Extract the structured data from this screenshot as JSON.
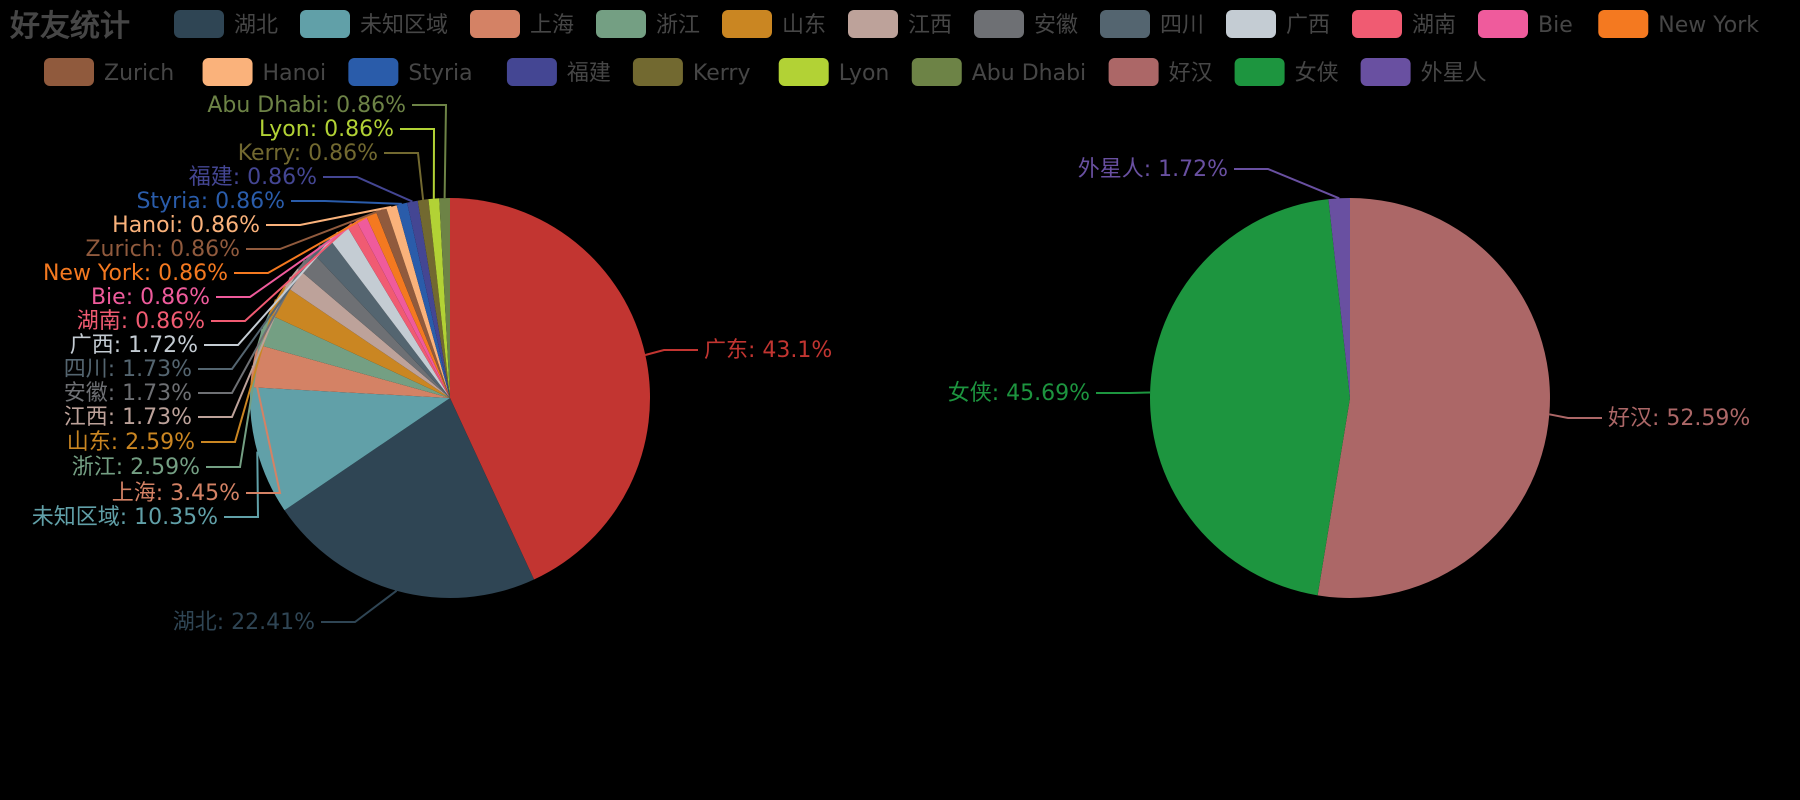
{
  "chart_data": [
    {
      "type": "pie",
      "title": "好友统计",
      "title_color": "#464646",
      "slices": [
        {
          "name": "广东",
          "label": "广东: 43.1%",
          "value": 43.1,
          "color": "#c23531"
        },
        {
          "name": "湖北",
          "label": "湖北: 22.41%",
          "value": 22.41,
          "color": "#2f4554"
        },
        {
          "name": "未知区域",
          "label": "未知区域: 10.35%",
          "value": 10.35,
          "color": "#61a0a8"
        },
        {
          "name": "上海",
          "label": "上海: 3.45%",
          "value": 3.45,
          "color": "#d48265"
        },
        {
          "name": "浙江",
          "label": "浙江: 2.59%",
          "value": 2.59,
          "color": "#749f83"
        },
        {
          "name": "山东",
          "label": "山东: 2.59%",
          "value": 2.59,
          "color": "#ca8622"
        },
        {
          "name": "江西",
          "label": "江西: 1.73%",
          "value": 1.73,
          "color": "#bda29a"
        },
        {
          "name": "安徽",
          "label": "安徽: 1.73%",
          "value": 1.73,
          "color": "#6e7074"
        },
        {
          "name": "四川",
          "label": "四川: 1.73%",
          "value": 1.73,
          "color": "#546570"
        },
        {
          "name": "广西",
          "label": "广西: 1.72%",
          "value": 1.72,
          "color": "#c4ccd3"
        },
        {
          "name": "湖南",
          "label": "湖南: 0.86%",
          "value": 0.86,
          "color": "#f05b72"
        },
        {
          "name": "Bie",
          "label": "Bie: 0.86%",
          "value": 0.86,
          "color": "#ef5b9c"
        },
        {
          "name": "New York",
          "label": "New York: 0.86%",
          "value": 0.86,
          "color": "#f47920"
        },
        {
          "name": "Zurich",
          "label": "Zurich: 0.86%",
          "value": 0.86,
          "color": "#905a3d"
        },
        {
          "name": "Hanoi",
          "label": "Hanoi: 0.86%",
          "value": 0.86,
          "color": "#fab27b"
        },
        {
          "name": "Styria",
          "label": "Styria: 0.86%",
          "value": 0.86,
          "color": "#2a5caa"
        },
        {
          "name": "福建",
          "label": "福建: 0.86%",
          "value": 0.86,
          "color": "#444693"
        },
        {
          "name": "Kerry",
          "label": "Kerry: 0.86%",
          "value": 0.86,
          "color": "#726930"
        },
        {
          "name": "Lyon",
          "label": "Lyon: 0.86%",
          "value": 0.86,
          "color": "#b2d235"
        },
        {
          "name": "Abu Dhabi",
          "label": "Abu Dhabi: 0.86%",
          "value": 0.86,
          "color": "#6d8346"
        }
      ]
    },
    {
      "type": "pie",
      "title": "",
      "slices": [
        {
          "name": "好汉",
          "label": "好汉: 52.59%",
          "value": 52.59,
          "color": "#ac6767"
        },
        {
          "name": "女侠",
          "label": "女侠: 45.69%",
          "value": 45.69,
          "color": "#1d953f"
        },
        {
          "name": "外星人",
          "label": "外星人: 1.72%",
          "value": 1.72,
          "color": "#6950a1"
        }
      ]
    }
  ],
  "legend": {
    "placement": "top",
    "text_color": "#464646",
    "items": [
      "湖北",
      "未知区域",
      "上海",
      "浙江",
      "山东",
      "江西",
      "安徽",
      "四川",
      "广西",
      "湖南",
      "Bie",
      "New York",
      "Zurich",
      "Hanoi",
      "Styria",
      "福建",
      "Kerry",
      "Lyon",
      "Abu Dhabi",
      "好汉",
      "女侠",
      "外星人"
    ]
  }
}
